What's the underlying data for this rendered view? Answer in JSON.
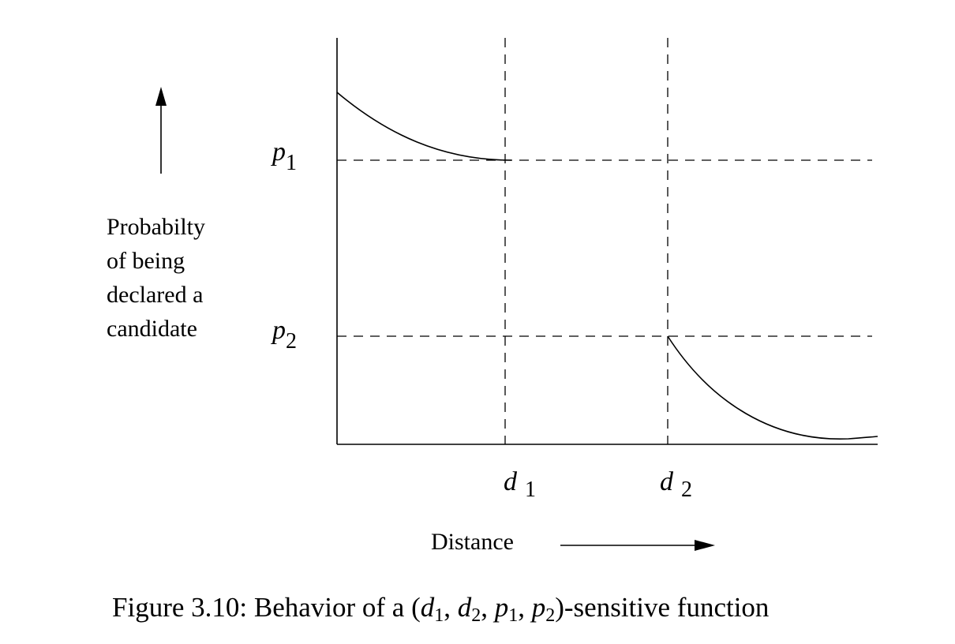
{
  "diagram": {
    "y_axis_label_lines": [
      "Probabilty",
      "of being",
      "declared a",
      "candidate"
    ],
    "x_axis_label": "Distance",
    "thresholds": {
      "p1": {
        "symbol": "p",
        "subscript": "1"
      },
      "p2": {
        "symbol": "p",
        "subscript": "2"
      },
      "d1": {
        "symbol": "d",
        "subscript": "1"
      },
      "d2": {
        "symbol": "d",
        "subscript": "2"
      }
    }
  },
  "caption": {
    "prefix": "Figure 3.10: Behavior of a (",
    "args": [
      {
        "symbol": "d",
        "subscript": "1"
      },
      {
        "symbol": "d",
        "subscript": "2"
      },
      {
        "symbol": "p",
        "subscript": "1"
      },
      {
        "symbol": "p",
        "subscript": "2"
      }
    ],
    "suffix": ")-sensitive function"
  }
}
